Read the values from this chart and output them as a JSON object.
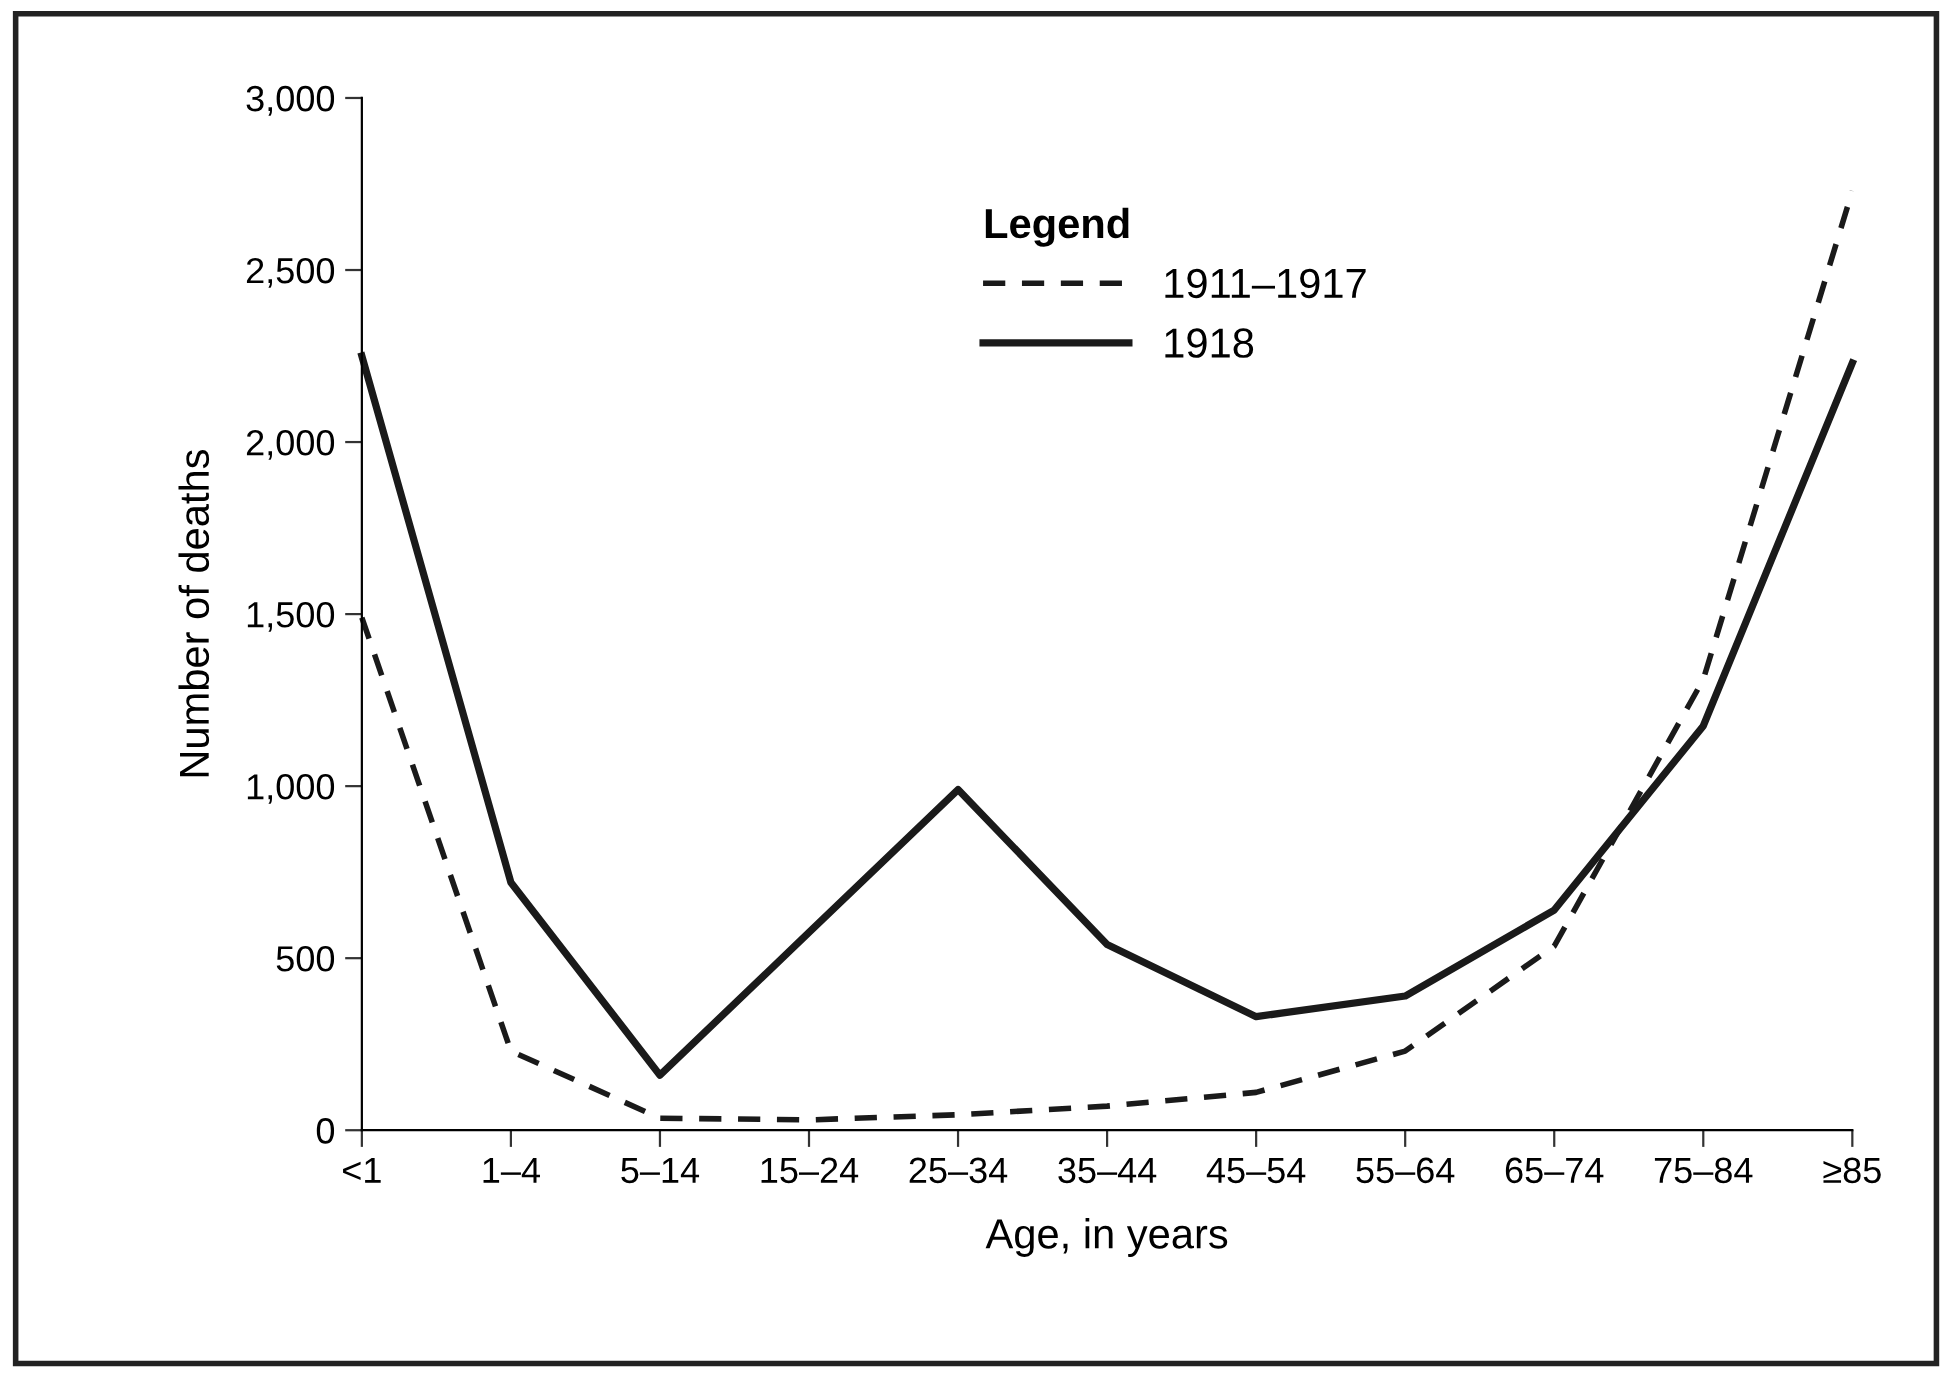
{
  "chart_data": {
    "type": "line",
    "xlabel": "Age, in years",
    "ylabel": "Number of deaths",
    "categories": [
      "<1",
      "1–4",
      "5–14",
      "15–24",
      "25–34",
      "35–44",
      "45–54",
      "55–64",
      "65–74",
      "75–84",
      "≥85"
    ],
    "series": [
      {
        "name": "1911–1917",
        "color": "#1a1a1a",
        "line_style": "dashed",
        "values": [
          1490,
          230,
          35,
          30,
          45,
          70,
          110,
          230,
          535,
          1310,
          2730
        ]
      },
      {
        "name": "1918",
        "color": "#1a1a1a",
        "line_style": "solid",
        "values": [
          2250,
          720,
          160,
          575,
          990,
          540,
          330,
          390,
          640,
          1175,
          2230
        ]
      }
    ],
    "ylim": [
      0,
      3000
    ],
    "yticks": [
      {
        "value": 0,
        "label": "0"
      },
      {
        "value": 500,
        "label": "500"
      },
      {
        "value": 1000,
        "label": "1,000"
      },
      {
        "value": 1500,
        "label": "1,500"
      },
      {
        "value": 2000,
        "label": "2,000"
      },
      {
        "value": 2500,
        "label": "2,500"
      },
      {
        "value": 3000,
        "label": "3,000"
      }
    ],
    "legend": "top right",
    "legend_title": "Legend",
    "grid": false,
    "marker": "none"
  }
}
